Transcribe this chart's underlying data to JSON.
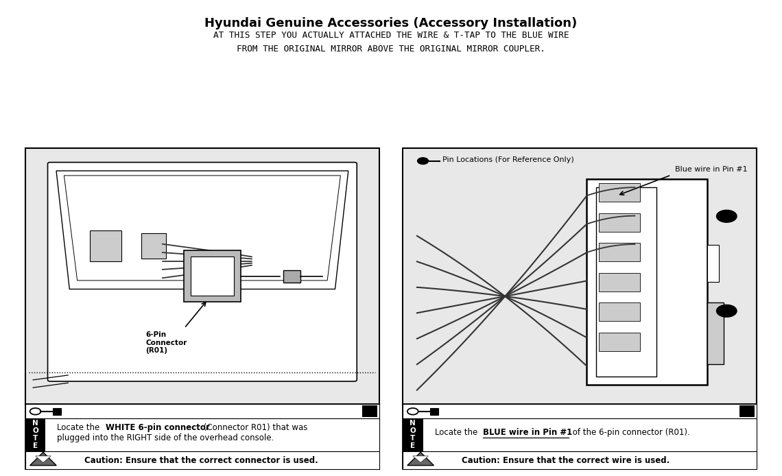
{
  "title": "Hyundai Genuine Accessories (Accessory Installation)",
  "subtitle_line1": "AT THIS STEP YOU ACTUALLY ATTACHED THE WIRE & T-TAP TO THE BLUE WIRE",
  "subtitle_line2": "FROM THE ORIGINAL MIRROR ABOVE THE ORIGINAL MIRROR COUPLER.",
  "bg_color": "#ffffff",
  "left_note_bold": "WHITE 6-pin connector",
  "left_note_pre": "Locate the ",
  "left_note_post": " (Connector R01) that was",
  "left_note_line2": "plugged into the RIGHT side of the overhead console.",
  "left_caution": "Caution: Ensure that the correct connector is used.",
  "right_note_pre": "Locate the ",
  "right_note_bold": "BLUE wire in Pin #1",
  "right_note_post": " of the 6-pin connector (R01).",
  "right_caution": "Caution: Ensure that the correct wire is used.",
  "pin_legend": "Pin Locations (For Reference Only)",
  "wire_label": "Blue wire in Pin #1",
  "connector_label": "6-Pin\nConnector\n(R01)"
}
